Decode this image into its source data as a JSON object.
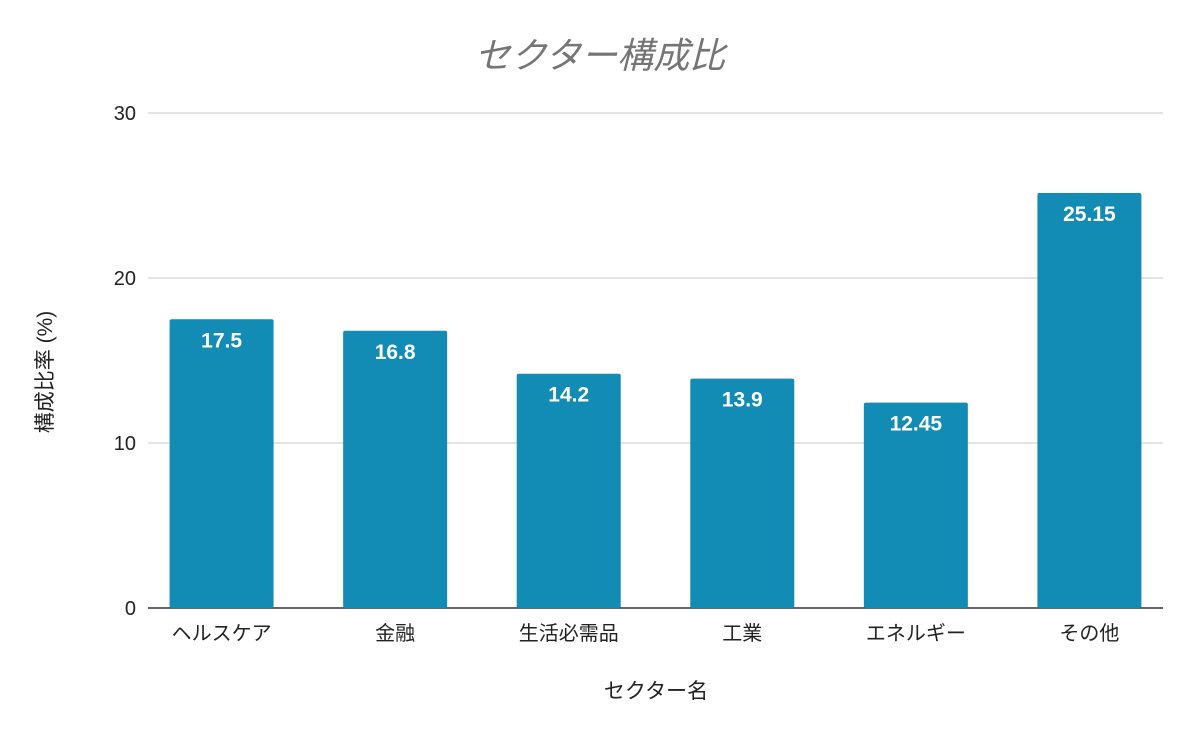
{
  "chart_data": {
    "type": "bar",
    "title": "セクター構成比",
    "xlabel": "セクター名",
    "ylabel": "構成比率 (%)",
    "categories": [
      "ヘルスケア",
      "金融",
      "生活必需品",
      "工業",
      "エネルギー",
      "その他"
    ],
    "values": [
      17.5,
      16.8,
      14.2,
      13.9,
      12.45,
      25.15
    ],
    "data_labels": [
      "17.5",
      "16.8",
      "14.2",
      "13.9",
      "12.45",
      "25.15"
    ],
    "ylim": [
      0,
      30
    ],
    "yticks": [
      0,
      10,
      20,
      30
    ],
    "grid": true,
    "legend": "none",
    "colors": {
      "bar": "#128bb5",
      "grid": "#c8c8c8",
      "axis": "#333333"
    }
  }
}
